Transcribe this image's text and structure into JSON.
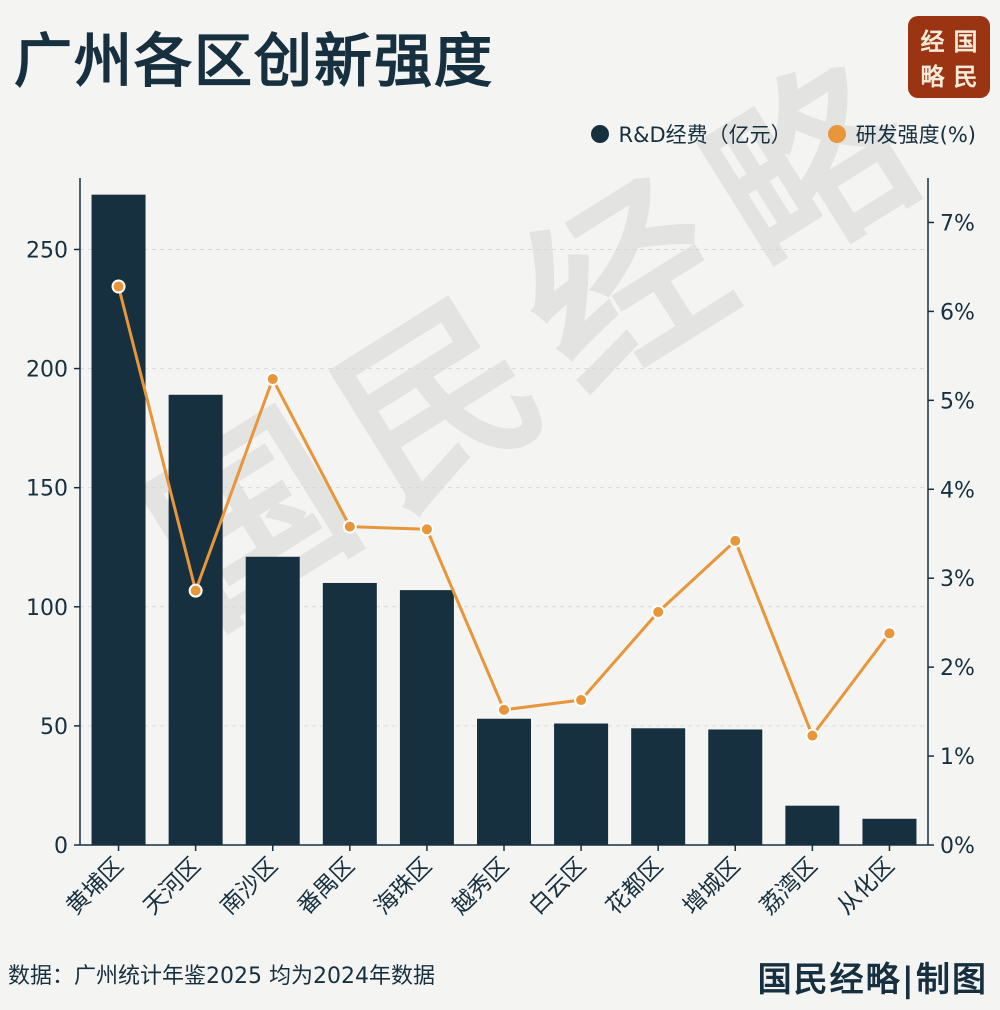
{
  "title": "广州各区创新强度",
  "logo": {
    "chars": [
      "经",
      "国",
      "略",
      "民"
    ],
    "bg_color": "#9a3412"
  },
  "watermark": "国民经略",
  "legend": [
    {
      "label": "R&D经费（亿元）",
      "color": "#17303f"
    },
    {
      "label": "研发强度(%)",
      "color": "#e8963a"
    }
  ],
  "footer": {
    "source": "数据：广州统计年鉴2025  均为2024年数据",
    "brand": "国民经略|制图"
  },
  "chart_data": {
    "type": "bar",
    "categories": [
      "黄埔区",
      "天河区",
      "南沙区",
      "番禺区",
      "海珠区",
      "越秀区",
      "白云区",
      "花都区",
      "增城区",
      "荔湾区",
      "从化区"
    ],
    "series": [
      {
        "name": "R&D经费（亿元）",
        "type": "bar",
        "axis": "left",
        "color": "#17303f",
        "values": [
          273,
          189,
          121,
          110,
          107,
          53,
          51,
          49,
          48.5,
          16.5,
          11
        ]
      },
      {
        "name": "研发强度(%)",
        "type": "line",
        "axis": "right",
        "color": "#e8963a",
        "values": [
          6.28,
          2.86,
          5.24,
          3.58,
          3.55,
          1.52,
          1.63,
          2.62,
          3.42,
          1.23,
          2.38
        ]
      }
    ],
    "y_left": {
      "min": 0,
      "max": 280,
      "ticks": [
        0,
        50,
        100,
        150,
        200,
        250
      ]
    },
    "y_right": {
      "min": 0,
      "max": 7.5,
      "ticks": [
        0,
        1,
        2,
        3,
        4,
        5,
        6,
        7
      ],
      "suffix": "%"
    },
    "grid": true,
    "legend_position": "top-right"
  }
}
